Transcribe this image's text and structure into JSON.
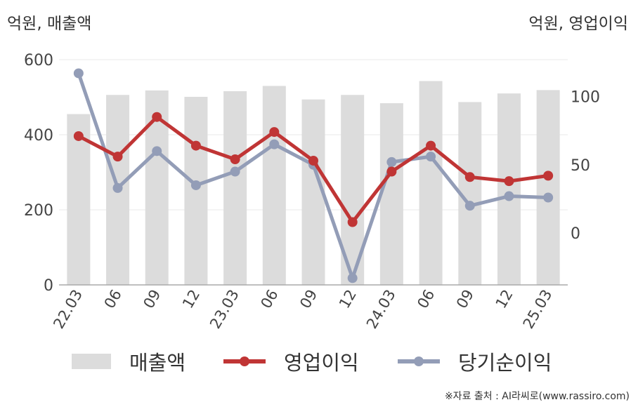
{
  "units": {
    "left": "억원, 매출액",
    "right": "억원, 영업이익"
  },
  "source": "※자료 출처 : AI라씨로(www.rassiro.com)",
  "legend": {
    "revenue": "매출액",
    "operating_profit": "영업이익",
    "net_income": "당기순이익"
  },
  "colors": {
    "revenue": "#dcdcdc",
    "operating_profit": "#c03535",
    "net_income": "#939db7",
    "grid": "#e8e8e8",
    "axis": "#aaaaaa"
  },
  "chart_data": {
    "type": "bar+line",
    "categories": [
      "22.03",
      "06",
      "09",
      "12",
      "23.03",
      "06",
      "09",
      "12",
      "24.03",
      "06",
      "09",
      "12",
      "25.03"
    ],
    "left_axis": {
      "ylim": [
        0,
        600
      ],
      "ticks": [
        0,
        200,
        400,
        600
      ]
    },
    "right_axis": {
      "ylim": [
        -38,
        127
      ],
      "ticks": [
        0,
        50,
        100
      ]
    },
    "series": [
      {
        "name": "매출액",
        "type": "bar",
        "axis": "left",
        "values": [
          455,
          506,
          518,
          501,
          516,
          530,
          494,
          506,
          484,
          543,
          487,
          510,
          519
        ]
      },
      {
        "name": "영업이익",
        "type": "line",
        "axis": "right",
        "values": [
          71,
          56,
          85,
          64,
          54,
          74,
          53,
          8,
          45,
          64,
          41,
          38,
          42
        ]
      },
      {
        "name": "당기순이익",
        "type": "line",
        "axis": "right",
        "values": [
          117,
          33,
          60,
          35,
          45,
          65,
          50,
          -33,
          52,
          56,
          20,
          27,
          26
        ]
      }
    ]
  }
}
